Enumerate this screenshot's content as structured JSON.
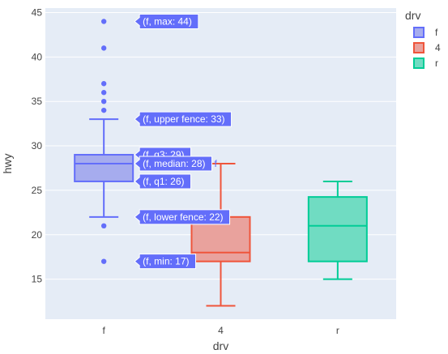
{
  "chart_data": {
    "type": "box",
    "xlabel": "drv",
    "ylabel": "hwy",
    "categories": [
      "f",
      "4",
      "r"
    ],
    "ylim": [
      10.5,
      45.5
    ],
    "yticks": [
      15,
      20,
      25,
      30,
      35,
      40,
      45
    ],
    "grid": true,
    "legend": {
      "title": "drv",
      "placement": "top-right",
      "items": [
        "f",
        "4",
        "r"
      ]
    },
    "series": [
      {
        "name": "f",
        "category": "f",
        "color": "#636efa",
        "fill": "#a6acee",
        "min": 22,
        "q1": 26,
        "median": 28,
        "q3": 29,
        "max": 33,
        "outliers": [
          17,
          21,
          34,
          35,
          36,
          37,
          41,
          44
        ]
      },
      {
        "name": "4",
        "category": "4",
        "color": "#ef553b",
        "fill": "#e9a29d",
        "min": 12,
        "q1": 17,
        "median": 18,
        "q3": 22,
        "max": 28,
        "outliers": []
      },
      {
        "name": "r",
        "category": "r",
        "color": "#00cc96",
        "fill": "#70dcc2",
        "min": 15,
        "q1": 17,
        "median": 21,
        "q3": 24.25,
        "max": 26,
        "outliers": []
      }
    ],
    "hover": {
      "series": "f",
      "side_label": "f",
      "labels": [
        {
          "text": "(f, max: 44)",
          "y": 44
        },
        {
          "text": "(f, upper fence: 33)",
          "y": 33
        },
        {
          "text": "(f, q3: 29)",
          "y": 29
        },
        {
          "text": "(f, median: 28)",
          "y": 28
        },
        {
          "text": "(f, q1: 26)",
          "y": 26
        },
        {
          "text": "(f, lower fence: 22)",
          "y": 22
        },
        {
          "text": "(f, min: 17)",
          "y": 17
        }
      ]
    }
  }
}
